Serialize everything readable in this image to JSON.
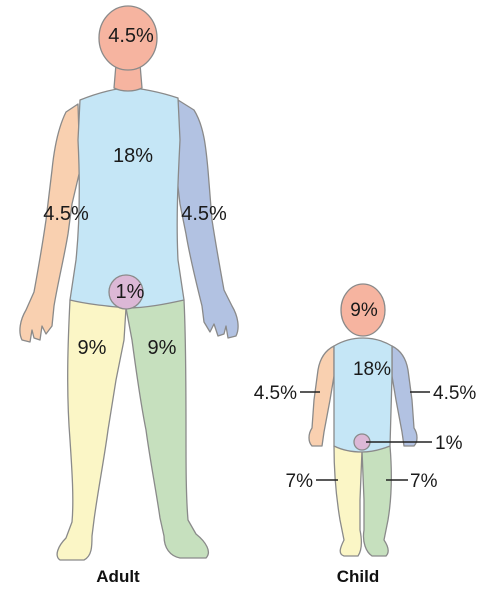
{
  "colors": {
    "head": "#f6b4a0",
    "trunk": "#c5e6f6",
    "left_arm": "#f9d0b0",
    "right_arm": "#b2c2e2",
    "left_leg": "#fbf6c6",
    "right_leg": "#c6e0be",
    "genital": "#dcb8d6"
  },
  "adult": {
    "caption": "Adult",
    "head": "4.5%",
    "trunk": "18%",
    "left_arm": "4.5%",
    "right_arm": "4.5%",
    "genital": "1%",
    "left_leg": "9%",
    "right_leg": "9%"
  },
  "child": {
    "caption": "Child",
    "head": "9%",
    "trunk": "18%",
    "left_arm": "4.5%",
    "right_arm": "4.5%",
    "genital": "1%",
    "left_leg": "7%",
    "right_leg": "7%"
  }
}
